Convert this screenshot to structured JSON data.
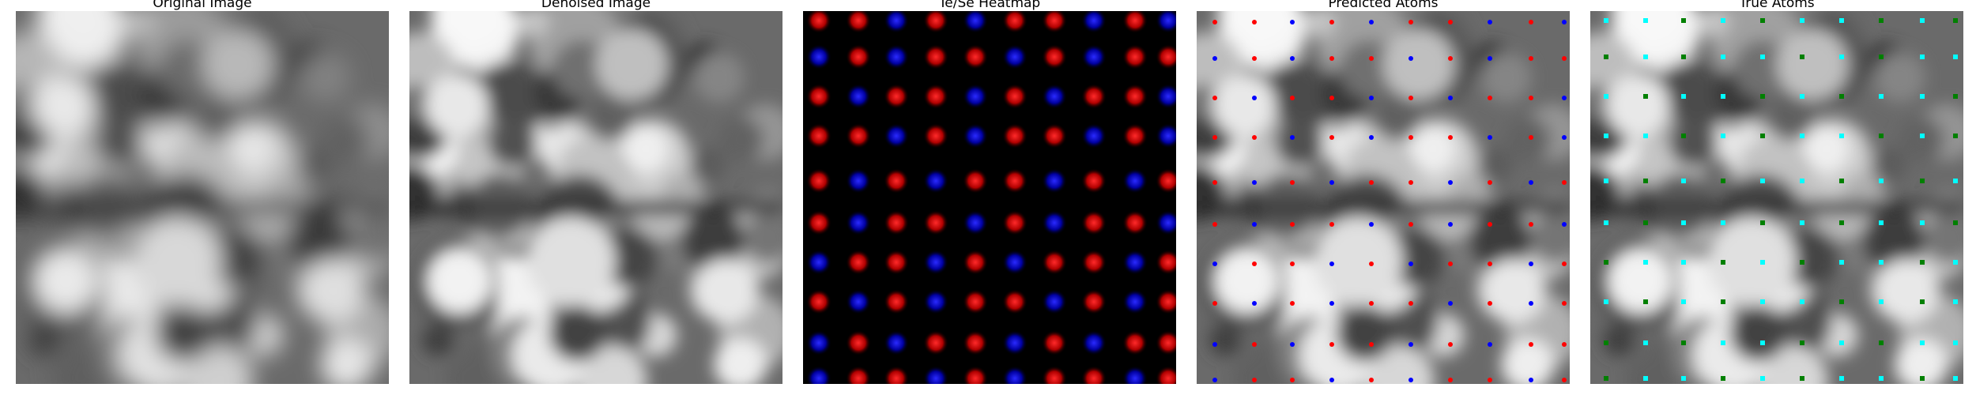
{
  "panels": [
    {
      "title": "Original Image"
    },
    {
      "title": "Denoised Image"
    },
    {
      "title": "Te/Se Heatmap"
    },
    {
      "title": "Predicted Atoms"
    },
    {
      "title": "True Atoms"
    }
  ],
  "colors": {
    "heatmap_type_a": "#ff0000",
    "heatmap_type_b": "#0000ff",
    "predicted_type_a": "#ff0000",
    "predicted_type_b": "#0000ff",
    "true_type_a": "#00ffff",
    "true_type_b": "#008000"
  }
}
